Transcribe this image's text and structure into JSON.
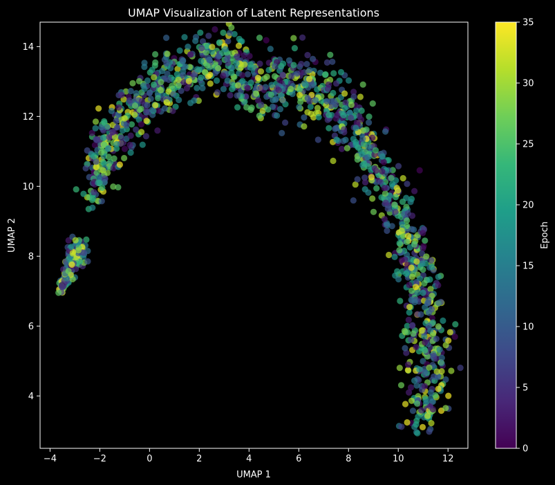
{
  "chart_data": {
    "type": "scatter",
    "title": "UMAP Visualization of Latent Representations",
    "xlabel": "UMAP 1",
    "ylabel": "UMAP 2",
    "xlim": [
      -4.4,
      12.8
    ],
    "ylim": [
      2.5,
      14.7
    ],
    "xticks": [
      -4,
      -2,
      0,
      2,
      4,
      6,
      8,
      10,
      12
    ],
    "yticks": [
      4,
      6,
      8,
      10,
      12,
      14
    ],
    "x_tick_labels": [
      "−4",
      "−2",
      "0",
      "2",
      "4",
      "6",
      "8",
      "10",
      "12"
    ],
    "y_tick_labels": [
      "4",
      "6",
      "8",
      "10",
      "12",
      "14"
    ],
    "colorbar": {
      "label": "Epoch",
      "range": [
        0,
        35
      ],
      "ticks": [
        0,
        5,
        10,
        15,
        20,
        25,
        30,
        35
      ],
      "tick_labels": [
        "0",
        "5",
        "10",
        "15",
        "20",
        "25",
        "30",
        "35"
      ],
      "colormap": "viridis"
    },
    "grid": false,
    "background": "#000000",
    "foreground": "#ffffff",
    "marker_alpha": 0.7,
    "approx_point_count": 1600,
    "curve_shape": "horseshoe arc from (-3.6, 7.0) up over the top near (2.8, 14.1) and down to (11.0, 3.1)",
    "anchors": [
      {
        "x": -3.6,
        "y": 7.0
      },
      {
        "x": -3.2,
        "y": 7.6
      },
      {
        "x": -2.7,
        "y": 8.5
      },
      {
        "x": -2.4,
        "y": 9.6
      },
      {
        "x": -2.0,
        "y": 10.5
      },
      {
        "x": -1.7,
        "y": 11.4
      },
      {
        "x": -1.0,
        "y": 12.0
      },
      {
        "x": 0.0,
        "y": 12.6
      },
      {
        "x": 1.0,
        "y": 13.1
      },
      {
        "x": 2.0,
        "y": 13.6
      },
      {
        "x": 2.8,
        "y": 13.9
      },
      {
        "x": 3.5,
        "y": 13.4
      },
      {
        "x": 4.2,
        "y": 12.8
      },
      {
        "x": 5.0,
        "y": 12.9
      },
      {
        "x": 6.0,
        "y": 13.1
      },
      {
        "x": 7.0,
        "y": 12.6
      },
      {
        "x": 7.8,
        "y": 12.0
      },
      {
        "x": 8.4,
        "y": 11.2
      },
      {
        "x": 9.0,
        "y": 10.5
      },
      {
        "x": 9.8,
        "y": 9.6
      },
      {
        "x": 10.4,
        "y": 8.6
      },
      {
        "x": 10.8,
        "y": 7.5
      },
      {
        "x": 11.0,
        "y": 6.5
      },
      {
        "x": 11.2,
        "y": 5.3
      },
      {
        "x": 11.2,
        "y": 4.5
      },
      {
        "x": 11.0,
        "y": 3.8
      },
      {
        "x": 11.0,
        "y": 3.2
      }
    ],
    "anchor_spread": [
      0.05,
      0.12,
      0.22,
      0.3,
      0.35,
      0.38,
      0.4,
      0.42,
      0.45,
      0.45,
      0.38,
      0.42,
      0.45,
      0.45,
      0.45,
      0.45,
      0.42,
      0.42,
      0.42,
      0.42,
      0.42,
      0.45,
      0.48,
      0.48,
      0.45,
      0.4,
      0.25
    ]
  }
}
